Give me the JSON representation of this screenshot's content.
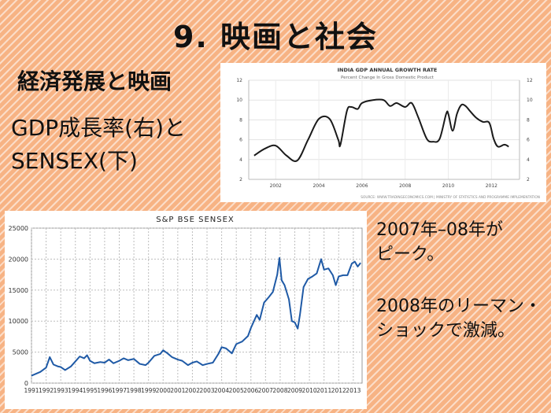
{
  "slide": {
    "title": "9. 映画と社会",
    "subtitle": "経済発展と映画",
    "caption_line1": "GDP成長率(右)と",
    "caption_line2": "SENSEX(下)",
    "note1_line1": "2007年–08年が",
    "note1_line2": "ピーク。",
    "note2_line1": "2008年のリーマン・",
    "note2_line2": "ショックで激減。"
  },
  "chart_data": [
    {
      "type": "line",
      "title": "INDIA GDP ANNUAL GROWTH RATE",
      "subtitle": "Percent Change In Gross Domestic Product",
      "source": "SOURCE: WWW.TRADINGECONOMICS.COM | MINISTRY OF STATISTICS AND PROGRAMME IMPLEMENTATION",
      "xlabel": "",
      "ylabel": "",
      "x_ticks": [
        "2002",
        "2004",
        "2006",
        "2008",
        "2010",
        "2012"
      ],
      "y_ticks": [
        2,
        4,
        6,
        8,
        10,
        12
      ],
      "xlim": [
        2000.75,
        2013.3
      ],
      "ylim": [
        2,
        12
      ],
      "grid": true,
      "line_color": "#1a1a1a",
      "x": [
        2001.0,
        2001.5,
        2002.0,
        2002.5,
        2003.0,
        2003.5,
        2004.0,
        2004.5,
        2004.9,
        2005.0,
        2005.3,
        2005.5,
        2005.8,
        2006.0,
        2006.5,
        2007.0,
        2007.3,
        2007.6,
        2008.0,
        2008.3,
        2008.6,
        2009.0,
        2009.3,
        2009.6,
        2009.9,
        2010.0,
        2010.2,
        2010.4,
        2010.6,
        2010.8,
        2011.0,
        2011.3,
        2011.6,
        2011.9,
        2012.1,
        2012.3,
        2012.6,
        2012.8
      ],
      "y": [
        4.4,
        5.1,
        5.4,
        4.4,
        3.9,
        6.0,
        8.1,
        8.1,
        6.0,
        5.5,
        8.9,
        9.3,
        9.1,
        9.7,
        10.0,
        10.0,
        9.4,
        9.7,
        9.3,
        9.7,
        8.3,
        6.1,
        5.8,
        6.1,
        8.6,
        8.6,
        6.9,
        8.6,
        9.5,
        9.4,
        8.9,
        8.2,
        7.8,
        7.7,
        6.1,
        5.3,
        5.5,
        5.3
      ],
      "line_width": "2"
    },
    {
      "type": "line",
      "title": "S&P BSE SENSEX",
      "xlabel": "",
      "ylabel": "",
      "x_ticks": [
        "1991",
        "1992",
        "1993",
        "1994",
        "1995",
        "1996",
        "1997",
        "1998",
        "1999",
        "2000",
        "2001",
        "2002",
        "2003",
        "2004",
        "2005",
        "2006",
        "2007",
        "2008",
        "2009",
        "2010",
        "2011",
        "2012",
        "2013"
      ],
      "y_ticks": [
        0,
        5000,
        10000,
        15000,
        20000,
        25000
      ],
      "xlim": [
        1991,
        2013.6
      ],
      "ylim": [
        0,
        25000
      ],
      "grid": true,
      "line_color": "#1f5aa6",
      "x": [
        1991.0,
        1991.3,
        1991.6,
        1992.0,
        1992.25,
        1992.5,
        1992.8,
        1993.0,
        1993.3,
        1993.7,
        1994.0,
        1994.3,
        1994.6,
        1994.8,
        1995.0,
        1995.3,
        1995.7,
        1996.0,
        1996.3,
        1996.6,
        1997.0,
        1997.3,
        1997.6,
        1998.0,
        1998.4,
        1998.8,
        1999.0,
        1999.4,
        1999.8,
        2000.0,
        2000.3,
        2000.6,
        2001.0,
        2001.3,
        2001.7,
        2002.0,
        2002.3,
        2002.7,
        2003.0,
        2003.4,
        2003.8,
        2004.0,
        2004.3,
        2004.7,
        2005.0,
        2005.4,
        2005.8,
        2006.0,
        2006.4,
        2006.6,
        2006.9,
        2007.2,
        2007.5,
        2007.8,
        2007.95,
        2008.1,
        2008.3,
        2008.6,
        2008.8,
        2009.0,
        2009.2,
        2009.35,
        2009.6,
        2009.9,
        2010.2,
        2010.5,
        2010.8,
        2011.0,
        2011.3,
        2011.6,
        2011.8,
        2012.0,
        2012.3,
        2012.6,
        2012.9,
        2013.1,
        2013.3,
        2013.5
      ],
      "y": [
        1200,
        1500,
        1800,
        2500,
        4200,
        3000,
        2700,
        2600,
        2100,
        2700,
        3500,
        4300,
        4000,
        4500,
        3600,
        3200,
        3400,
        3300,
        3800,
        3200,
        3600,
        4000,
        3700,
        3900,
        3100,
        2900,
        3300,
        4400,
        4700,
        5300,
        4800,
        4200,
        3800,
        3600,
        2900,
        3300,
        3500,
        2900,
        3100,
        3300,
        4800,
        5800,
        5600,
        4800,
        6300,
        6700,
        7600,
        8900,
        11000,
        10200,
        13000,
        13800,
        14700,
        17500,
        20200,
        16600,
        15800,
        13500,
        10000,
        9800,
        8800,
        11000,
        15500,
        16800,
        17200,
        17700,
        20000,
        18300,
        18500,
        17400,
        15800,
        17200,
        17400,
        17400,
        19300,
        19600,
        18800,
        19400
      ],
      "line_width": "2"
    }
  ]
}
